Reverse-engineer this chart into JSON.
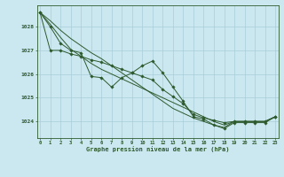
{
  "xlabel": "Graphe pression niveau de la mer (hPa)",
  "bg_color": "#cbe8f0",
  "grid_color": "#a8cdd8",
  "line_color": "#2d5a2d",
  "ylim": [
    1023.3,
    1028.9
  ],
  "xlim": [
    -0.3,
    23.3
  ],
  "xticks": [
    0,
    1,
    2,
    3,
    4,
    5,
    6,
    7,
    8,
    9,
    10,
    11,
    12,
    13,
    14,
    15,
    16,
    17,
    18,
    19,
    20,
    21,
    22,
    23
  ],
  "yticks": [
    1024,
    1025,
    1026,
    1027,
    1028
  ],
  "series1": [
    1028.6,
    1028.0,
    1027.3,
    1027.0,
    1026.9,
    1025.9,
    1025.85,
    1025.45,
    1025.85,
    1026.05,
    1026.35,
    1026.55,
    1026.05,
    1025.45,
    1024.85,
    1024.2,
    1024.1,
    1023.85,
    1023.7,
    1023.95,
    1023.95,
    1023.95,
    1023.95,
    1024.2
  ],
  "series2": [
    1028.6,
    1027.0,
    1027.0,
    1026.85,
    1026.75,
    1026.6,
    1026.5,
    1026.35,
    1026.2,
    1026.05,
    1025.9,
    1025.75,
    1025.35,
    1025.05,
    1024.75,
    1024.3,
    1024.15,
    1024.05,
    1023.95,
    1024.0,
    1024.0,
    1024.0,
    1024.0,
    1024.2
  ],
  "series3": [
    1028.6,
    1028.1,
    1027.55,
    1027.05,
    1026.75,
    1026.45,
    1026.2,
    1026.0,
    1025.8,
    1025.6,
    1025.4,
    1025.2,
    1025.0,
    1024.8,
    1024.6,
    1024.4,
    1024.2,
    1024.0,
    1023.85,
    1024.0,
    1024.0,
    1024.0,
    1024.0,
    1024.2
  ],
  "series4": [
    1028.6,
    1028.25,
    1027.85,
    1027.5,
    1027.2,
    1026.9,
    1026.65,
    1026.35,
    1026.05,
    1025.75,
    1025.45,
    1025.15,
    1024.85,
    1024.55,
    1024.35,
    1024.15,
    1024.0,
    1023.85,
    1023.75,
    1024.0,
    1024.0,
    1024.0,
    1024.0,
    1024.2
  ]
}
